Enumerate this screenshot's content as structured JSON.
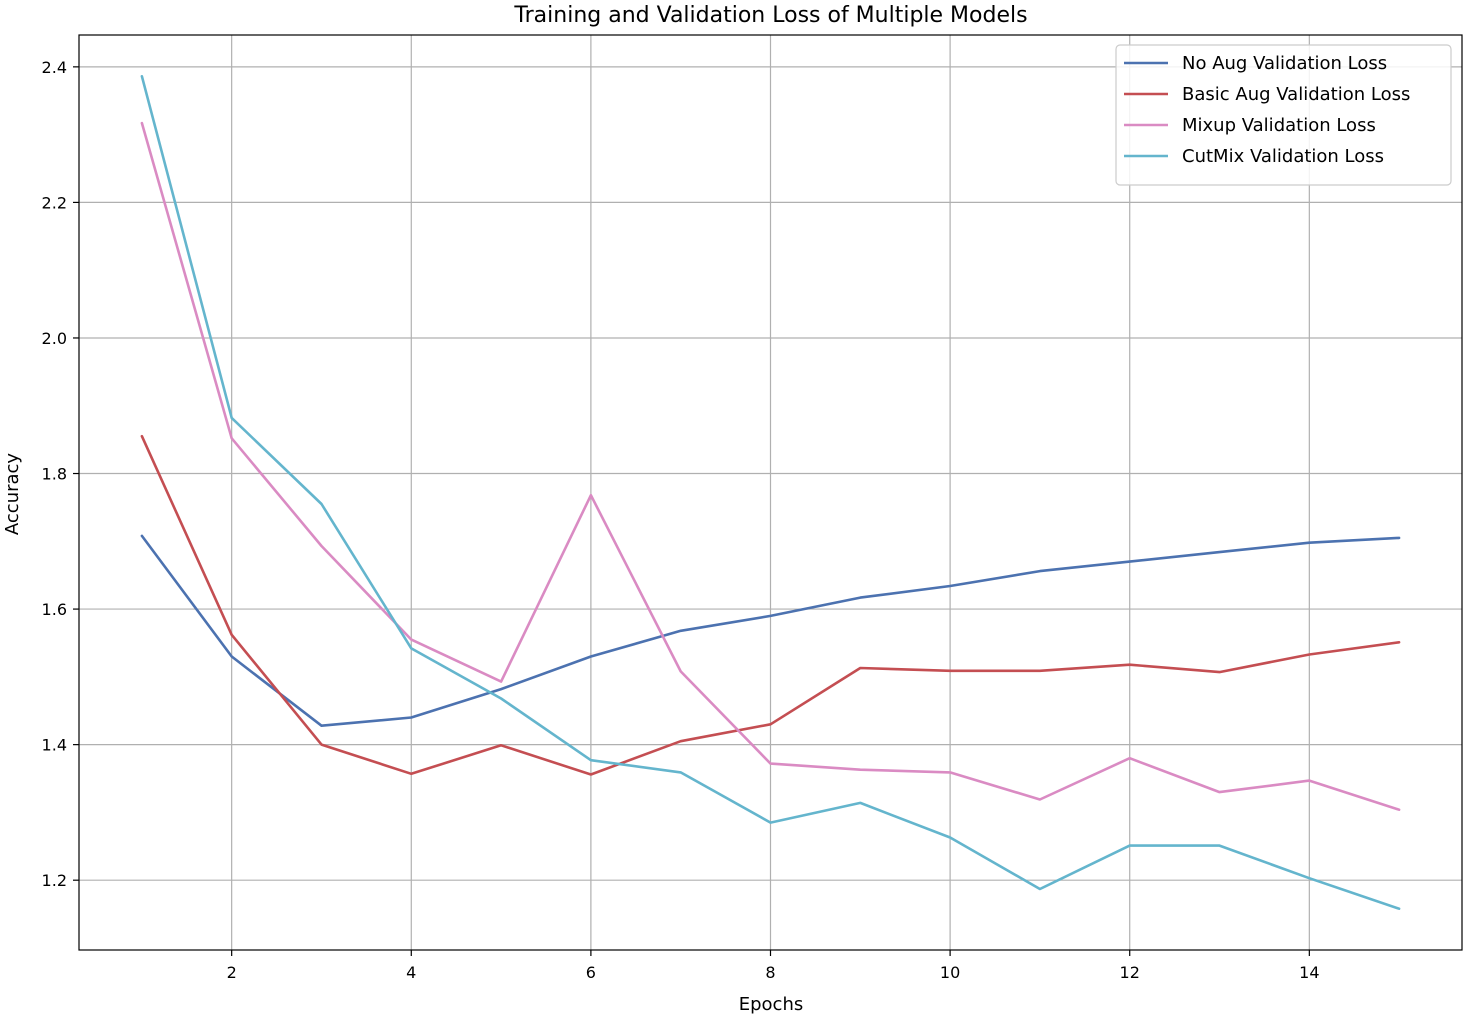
{
  "chart_data": {
    "type": "line",
    "title": "Training and Validation Loss of Multiple Models",
    "xlabel": "Epochs",
    "ylabel": "Accuracy",
    "xlim": [
      0.3,
      15.7
    ],
    "ylim": [
      1.097,
      2.447
    ],
    "xticks": [
      2,
      4,
      6,
      8,
      10,
      12,
      14
    ],
    "yticks": [
      1.2,
      1.4,
      1.6,
      1.8,
      2.0,
      2.2,
      2.4
    ],
    "xtick_labels": [
      "2",
      "4",
      "6",
      "8",
      "10",
      "12",
      "14"
    ],
    "ytick_labels": [
      "1.2",
      "1.4",
      "1.6",
      "1.8",
      "2.0",
      "2.2",
      "2.4"
    ],
    "grid": true,
    "legend_position": "top-right",
    "x": [
      1,
      2,
      3,
      4,
      5,
      6,
      7,
      8,
      9,
      10,
      11,
      12,
      13,
      14,
      15
    ],
    "series": [
      {
        "name": "No Aug Validation Loss",
        "color": "#4c72b0",
        "values": [
          1.708,
          1.53,
          1.428,
          1.44,
          1.482,
          1.53,
          1.568,
          1.59,
          1.617,
          1.634,
          1.656,
          1.67,
          1.684,
          1.698,
          1.705
        ]
      },
      {
        "name": "Basic Aug Validation Loss",
        "color": "#c44e52",
        "values": [
          1.855,
          1.562,
          1.4,
          1.357,
          1.399,
          1.356,
          1.405,
          1.43,
          1.513,
          1.509,
          1.509,
          1.518,
          1.507,
          1.533,
          1.551
        ]
      },
      {
        "name": "Mixup Validation Loss",
        "color": "#da8bc3",
        "values": [
          2.317,
          1.852,
          1.693,
          1.555,
          1.493,
          1.768,
          1.508,
          1.372,
          1.363,
          1.359,
          1.319,
          1.38,
          1.33,
          1.347,
          1.304
        ]
      },
      {
        "name": "CutMix Validation Loss",
        "color": "#64b5cd",
        "values": [
          2.386,
          1.882,
          1.755,
          1.542,
          1.468,
          1.377,
          1.359,
          1.285,
          1.314,
          1.263,
          1.187,
          1.251,
          1.251,
          1.203,
          1.158
        ]
      }
    ]
  }
}
